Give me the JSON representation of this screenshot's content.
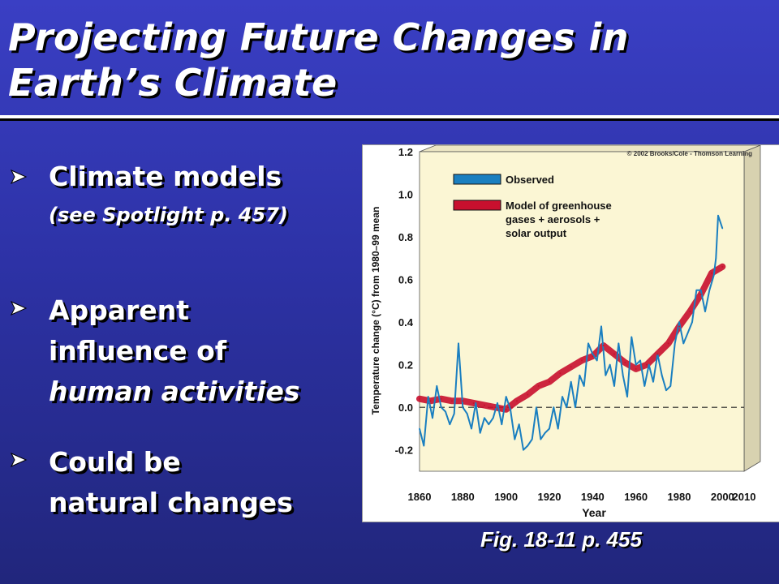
{
  "slide": {
    "title_line1": "Projecting Future Changes in",
    "title_line2": "Earth’s Climate",
    "bullets": [
      {
        "line1": "Climate models",
        "line2": "(see Spotlight p. 457)"
      },
      {
        "line1": "Apparent",
        "line2": "influence of",
        "line3": "human activities"
      },
      {
        "line1": "Could be",
        "line2": "natural changes"
      }
    ],
    "bullet_icon": "arrow-bullet-icon",
    "caption": "Fig. 18-11 p. 455"
  },
  "chart_data": {
    "type": "line",
    "copyright": "© 2002 Brooks/Cole - Thomson Learning",
    "xlabel": "Year",
    "ylabel": "Temperature change (°C) from 1980–99 mean",
    "xlim": [
      1860,
      2010
    ],
    "ylim": [
      -0.3,
      1.2
    ],
    "x_ticks": [
      1860,
      1880,
      1900,
      1920,
      1940,
      1960,
      1980,
      2000,
      2010
    ],
    "y_ticks": [
      1.2,
      1.0,
      0.8,
      0.6,
      0.4,
      0.2,
      0.0,
      -0.2
    ],
    "y_tick_labels": [
      "1.2",
      "1.0",
      "0.8",
      "0.6",
      "0.4",
      "0.2",
      "0.0",
      "-0.2"
    ],
    "zero_line": true,
    "legend": [
      {
        "label": "Observed",
        "color": "#1a7fc0"
      },
      {
        "label": "Model of greenhouse",
        "label2": "gases + aerosols +",
        "label3": "solar output",
        "color": "#c8102e"
      }
    ],
    "series": [
      {
        "name": "Observed",
        "color": "#1a7fc0",
        "x": [
          1860,
          1862,
          1864,
          1866,
          1868,
          1870,
          1872,
          1874,
          1876,
          1878,
          1880,
          1882,
          1884,
          1886,
          1888,
          1890,
          1892,
          1894,
          1896,
          1898,
          1900,
          1902,
          1904,
          1906,
          1908,
          1910,
          1912,
          1914,
          1916,
          1918,
          1920,
          1922,
          1924,
          1926,
          1928,
          1930,
          1932,
          1934,
          1936,
          1938,
          1940,
          1942,
          1944,
          1946,
          1948,
          1950,
          1952,
          1954,
          1956,
          1958,
          1960,
          1962,
          1964,
          1966,
          1968,
          1970,
          1972,
          1974,
          1976,
          1978,
          1980,
          1982,
          1984,
          1986,
          1988,
          1990,
          1992,
          1994,
          1996,
          1997,
          1998,
          2000
        ],
        "values": [
          -0.1,
          -0.18,
          0.05,
          -0.05,
          0.1,
          0.0,
          -0.02,
          -0.08,
          -0.03,
          0.3,
          0.0,
          -0.03,
          -0.1,
          0.02,
          -0.12,
          -0.05,
          -0.08,
          -0.05,
          0.02,
          -0.08,
          0.05,
          -0.01,
          -0.15,
          -0.08,
          -0.2,
          -0.18,
          -0.15,
          0.0,
          -0.15,
          -0.12,
          -0.1,
          0.0,
          -0.1,
          0.05,
          0.0,
          0.12,
          0.0,
          0.15,
          0.1,
          0.3,
          0.25,
          0.22,
          0.38,
          0.15,
          0.2,
          0.1,
          0.3,
          0.15,
          0.05,
          0.33,
          0.2,
          0.22,
          0.1,
          0.2,
          0.12,
          0.25,
          0.15,
          0.08,
          0.1,
          0.3,
          0.4,
          0.3,
          0.35,
          0.4,
          0.55,
          0.55,
          0.45,
          0.55,
          0.62,
          0.7,
          0.9,
          0.84
        ]
      },
      {
        "name": "Model of greenhouse gases + aerosols + solar output",
        "color": "#c8102e",
        "x": [
          1860,
          1865,
          1870,
          1875,
          1880,
          1885,
          1890,
          1895,
          1900,
          1905,
          1910,
          1915,
          1920,
          1925,
          1930,
          1935,
          1940,
          1945,
          1950,
          1955,
          1960,
          1965,
          1970,
          1975,
          1980,
          1985,
          1990,
          1995,
          2000
        ],
        "values": [
          0.04,
          0.03,
          0.04,
          0.03,
          0.03,
          0.02,
          0.01,
          0.0,
          -0.01,
          0.03,
          0.06,
          0.1,
          0.12,
          0.16,
          0.19,
          0.22,
          0.24,
          0.29,
          0.25,
          0.21,
          0.18,
          0.2,
          0.25,
          0.3,
          0.38,
          0.45,
          0.53,
          0.63,
          0.66
        ]
      }
    ]
  }
}
